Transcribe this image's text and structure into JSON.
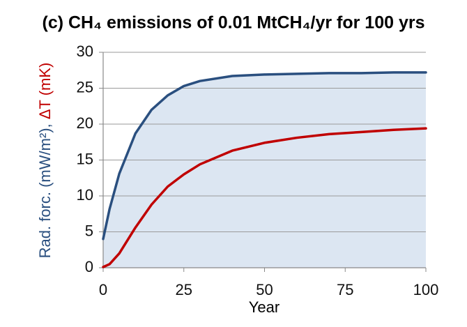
{
  "chart_data": {
    "type": "line",
    "title": "(c) CH₄ emissions of 0.01 MtCH₄/yr for 100 yrs",
    "x_label": "Year",
    "y_label": [
      {
        "text": "Rad. forc. (mW/m²),",
        "color": "#2a4f7f"
      },
      {
        "text": "ΔT (mK)",
        "color": "#c00000"
      }
    ],
    "x": [
      0,
      2,
      5,
      10,
      15,
      20,
      25,
      30,
      40,
      50,
      60,
      70,
      80,
      90,
      100
    ],
    "series": [
      {
        "color": "#2a4f7f",
        "fill": "#dce6f2",
        "values": [
          4.0,
          8.2,
          13.1,
          18.7,
          22.0,
          24.0,
          25.3,
          26.0,
          26.7,
          26.9,
          27.0,
          27.1,
          27.1,
          27.2,
          27.2
        ]
      },
      {
        "color": "#c00000",
        "values": [
          0.1,
          0.5,
          2.0,
          5.6,
          8.8,
          11.3,
          13.0,
          14.4,
          16.3,
          17.4,
          18.1,
          18.6,
          18.9,
          19.2,
          19.4
        ]
      }
    ],
    "xlim": [
      0,
      100
    ],
    "xticks": [
      0,
      25,
      50,
      75,
      100
    ],
    "ylim": [
      0,
      30
    ],
    "yticks": [
      0,
      5,
      10,
      15,
      20,
      25,
      30
    ],
    "grid": true
  }
}
